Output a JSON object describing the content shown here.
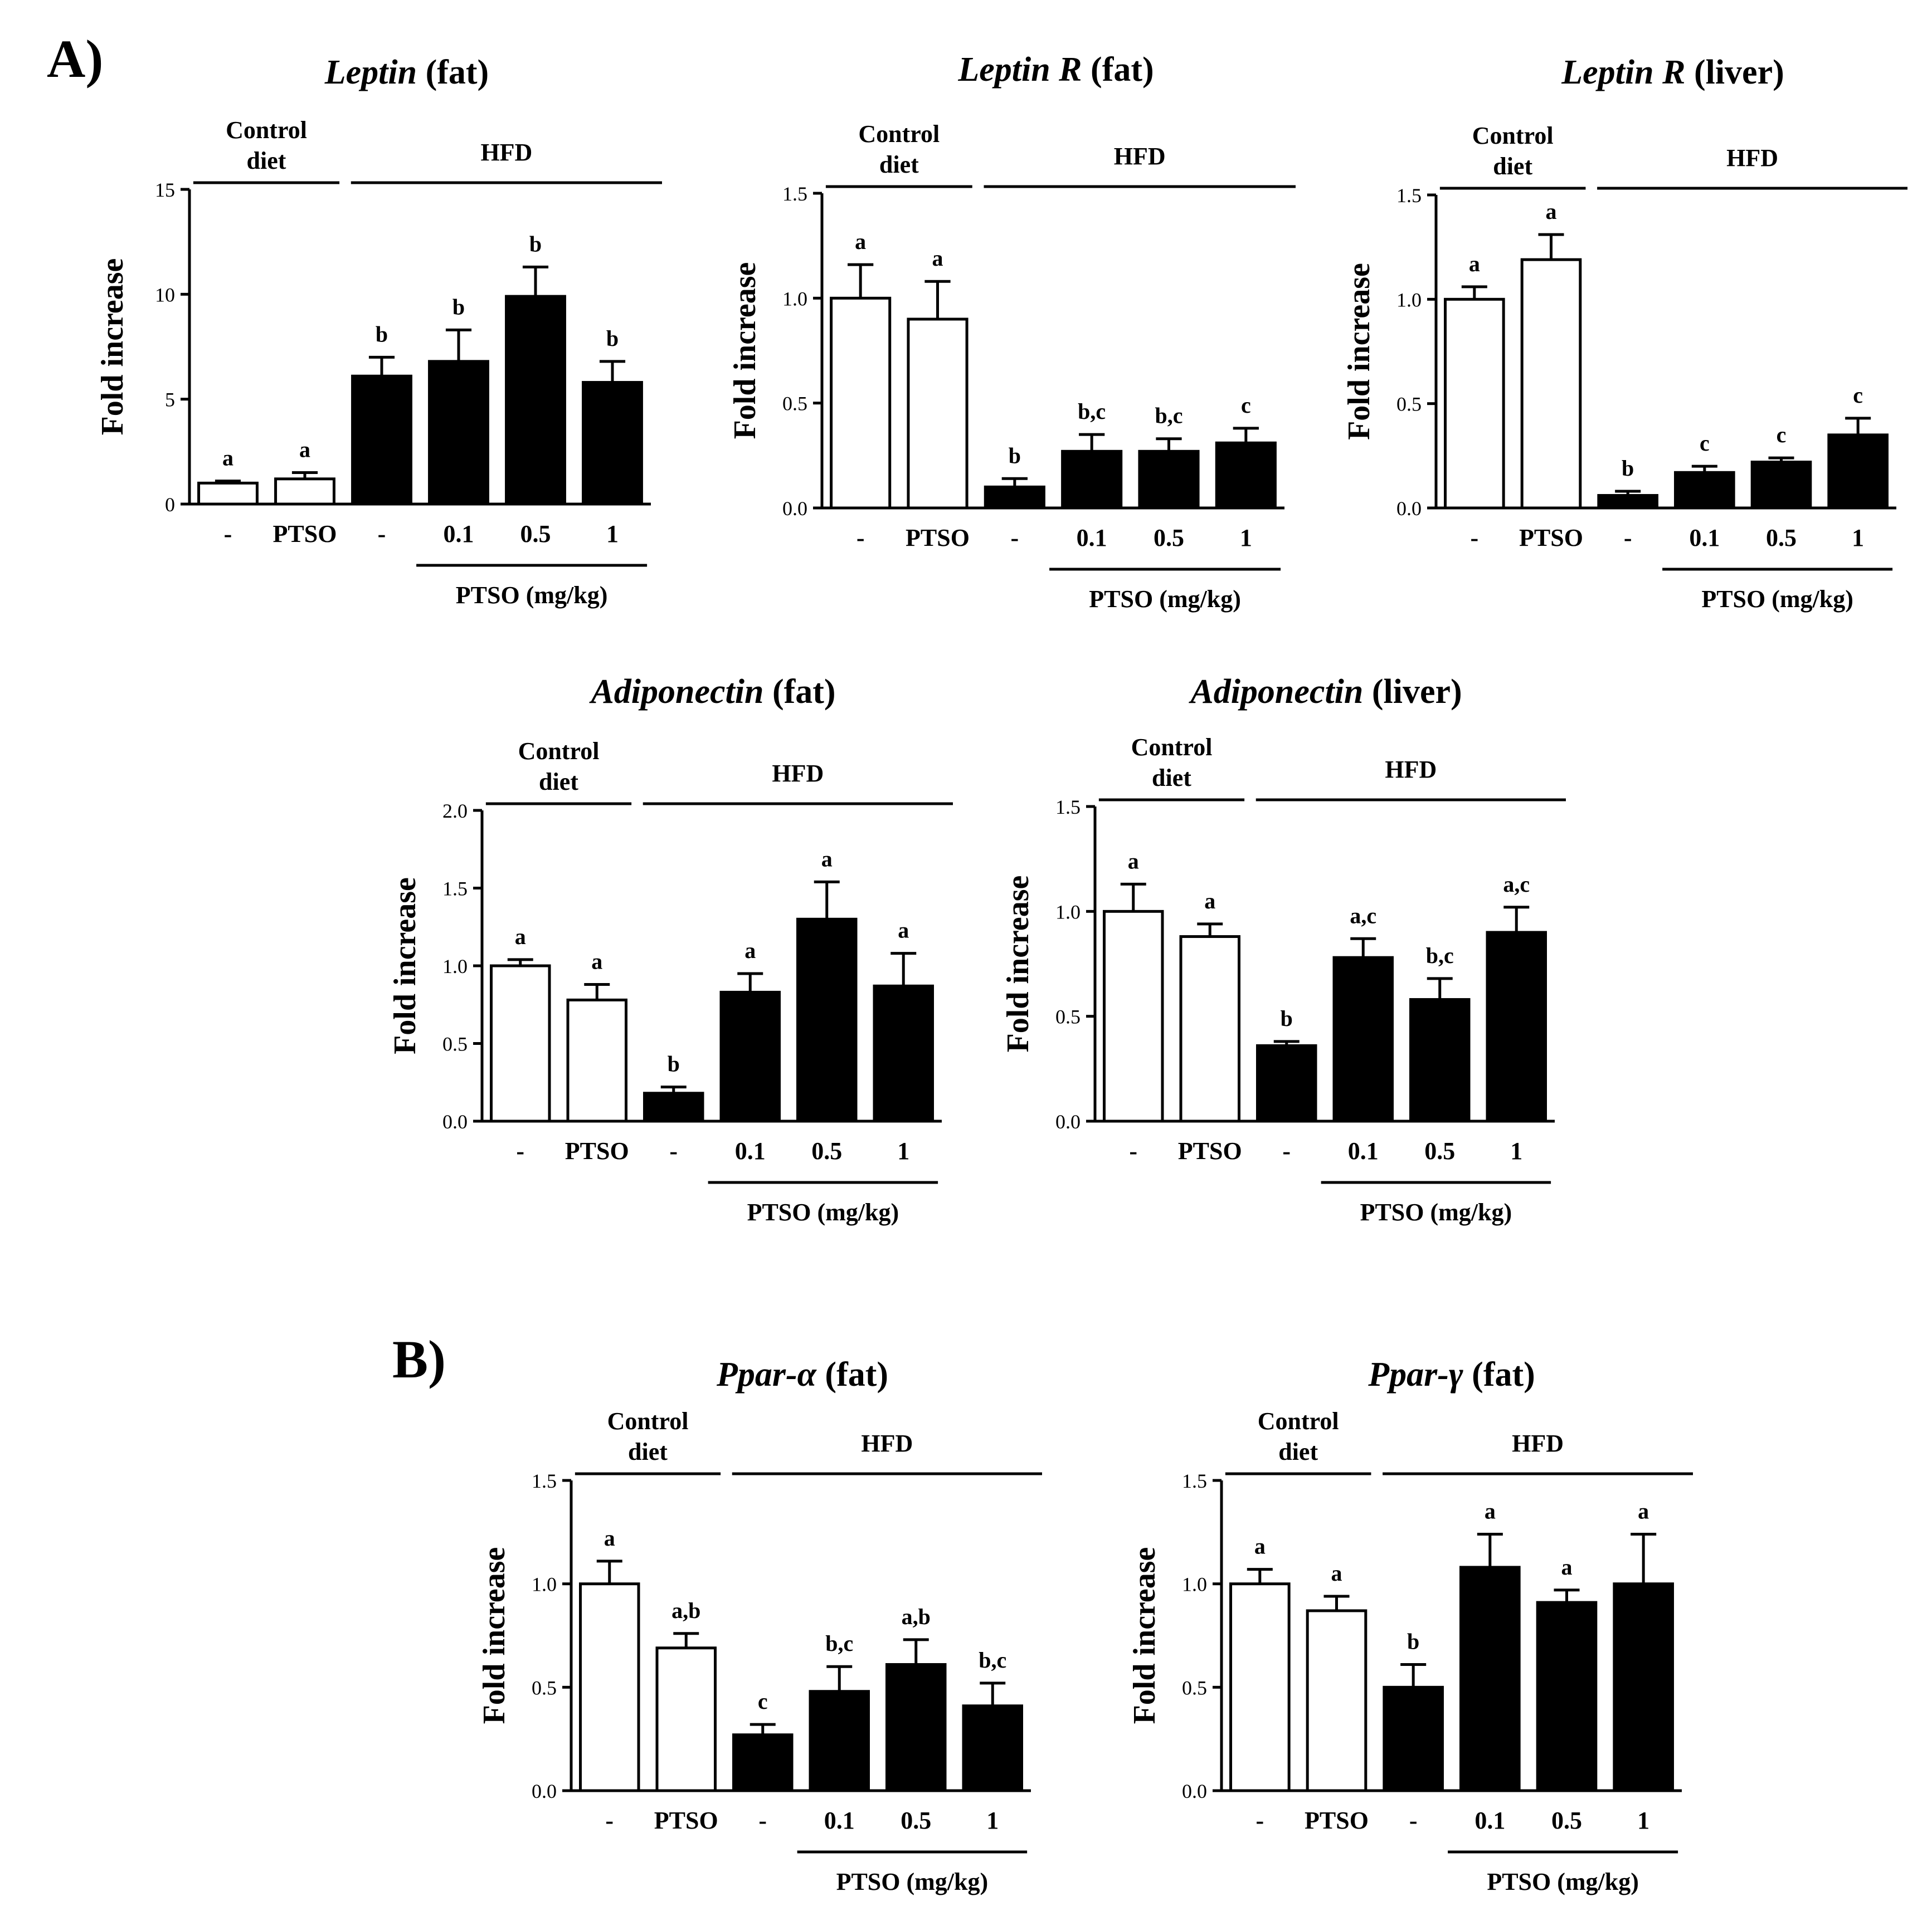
{
  "panels": {
    "A": "A)",
    "B": "B)"
  },
  "group_labels": {
    "control_line1": "Control",
    "control_line2": "diet",
    "hfd": "HFD"
  },
  "colors": {
    "control_bar": "#ffffff",
    "hfd_bar": "#000000",
    "stroke": "#000000"
  },
  "chart_data": [
    {
      "id": "leptin-fat",
      "type": "bar",
      "title_gene": "Leptin",
      "title_tissue": " (fat)",
      "ylabel": "Fold increase",
      "xlabel": "PTSO (mg/kg)",
      "categories": [
        "-",
        "PTSO",
        "-",
        "0.1",
        "0.5",
        "1"
      ],
      "groups": [
        "control",
        "control",
        "hfd",
        "hfd",
        "hfd",
        "hfd"
      ],
      "values": [
        1.0,
        1.2,
        6.1,
        6.8,
        9.9,
        5.8
      ],
      "errors": [
        0.1,
        0.3,
        0.9,
        1.5,
        1.4,
        1.0
      ],
      "letters": [
        "a",
        "a",
        "b",
        "b",
        "b",
        "b"
      ],
      "ylim": [
        0,
        15
      ],
      "ticks": [
        0,
        5,
        10,
        15
      ],
      "tick_labels": [
        "0",
        "5",
        "10",
        "15"
      ]
    },
    {
      "id": "leptinr-fat",
      "type": "bar",
      "title_gene": "Leptin R",
      "title_tissue": " (fat)",
      "ylabel": "Fold increase",
      "xlabel": "PTSO (mg/kg)",
      "categories": [
        "-",
        "PTSO",
        "-",
        "0.1",
        "0.5",
        "1"
      ],
      "groups": [
        "control",
        "control",
        "hfd",
        "hfd",
        "hfd",
        "hfd"
      ],
      "values": [
        1.0,
        0.9,
        0.1,
        0.27,
        0.27,
        0.31
      ],
      "errors": [
        0.16,
        0.18,
        0.04,
        0.08,
        0.06,
        0.07
      ],
      "letters": [
        "a",
        "a",
        "b",
        "b,c",
        "b,c",
        "c"
      ],
      "ylim": [
        0,
        1.5
      ],
      "ticks": [
        0,
        0.5,
        1.0,
        1.5
      ],
      "tick_labels": [
        "0.0",
        "0.5",
        "1.0",
        "1.5"
      ]
    },
    {
      "id": "leptinr-liver",
      "type": "bar",
      "title_gene": "Leptin R",
      "title_tissue": " (liver)",
      "ylabel": "Fold increase",
      "xlabel": "PTSO (mg/kg)",
      "categories": [
        "-",
        "PTSO",
        "-",
        "0.1",
        "0.5",
        "1"
      ],
      "groups": [
        "control",
        "control",
        "hfd",
        "hfd",
        "hfd",
        "hfd"
      ],
      "values": [
        1.0,
        1.19,
        0.06,
        0.17,
        0.22,
        0.35
      ],
      "errors": [
        0.06,
        0.12,
        0.02,
        0.03,
        0.02,
        0.08
      ],
      "letters": [
        "a",
        "a",
        "b",
        "c",
        "c",
        "c"
      ],
      "ylim": [
        0,
        1.5
      ],
      "ticks": [
        0,
        0.5,
        1.0,
        1.5
      ],
      "tick_labels": [
        "0.0",
        "0.5",
        "1.0",
        "1.5"
      ]
    },
    {
      "id": "adiponectin-fat",
      "type": "bar",
      "title_gene": "Adiponectin",
      "title_tissue": " (fat)",
      "ylabel": "Fold increase",
      "xlabel": "PTSO (mg/kg)",
      "categories": [
        "-",
        "PTSO",
        "-",
        "0.1",
        "0.5",
        "1"
      ],
      "groups": [
        "control",
        "control",
        "hfd",
        "hfd",
        "hfd",
        "hfd"
      ],
      "values": [
        1.0,
        0.78,
        0.18,
        0.83,
        1.3,
        0.87
      ],
      "errors": [
        0.04,
        0.1,
        0.04,
        0.12,
        0.24,
        0.21
      ],
      "letters": [
        "a",
        "a",
        "b",
        "a",
        "a",
        "a"
      ],
      "ylim": [
        0,
        2.0
      ],
      "ticks": [
        0,
        0.5,
        1.0,
        1.5,
        2.0
      ],
      "tick_labels": [
        "0.0",
        "0.5",
        "1.0",
        "1.5",
        "2.0"
      ]
    },
    {
      "id": "adiponectin-liver",
      "type": "bar",
      "title_gene": "Adiponectin",
      "title_tissue": " (liver)",
      "ylabel": "Fold increase",
      "xlabel": "PTSO (mg/kg)",
      "categories": [
        "-",
        "PTSO",
        "-",
        "0.1",
        "0.5",
        "1"
      ],
      "groups": [
        "control",
        "control",
        "hfd",
        "hfd",
        "hfd",
        "hfd"
      ],
      "values": [
        1.0,
        0.88,
        0.36,
        0.78,
        0.58,
        0.9
      ],
      "errors": [
        0.13,
        0.06,
        0.02,
        0.09,
        0.1,
        0.12
      ],
      "letters": [
        "a",
        "a",
        "b",
        "a,c",
        "b,c",
        "a,c"
      ],
      "ylim": [
        0,
        1.5
      ],
      "ticks": [
        0,
        0.5,
        1.0,
        1.5
      ],
      "tick_labels": [
        "0.0",
        "0.5",
        "1.0",
        "1.5"
      ]
    },
    {
      "id": "ppara-fat",
      "type": "bar",
      "title_gene": "Ppar-α",
      "title_tissue": " (fat)",
      "ylabel": "Fold increase",
      "xlabel": "PTSO (mg/kg)",
      "categories": [
        "-",
        "PTSO",
        "-",
        "0.1",
        "0.5",
        "1"
      ],
      "groups": [
        "control",
        "control",
        "hfd",
        "hfd",
        "hfd",
        "hfd"
      ],
      "values": [
        1.0,
        0.69,
        0.27,
        0.48,
        0.61,
        0.41
      ],
      "errors": [
        0.11,
        0.07,
        0.05,
        0.12,
        0.12,
        0.11
      ],
      "letters": [
        "a",
        "a,b",
        "c",
        "b,c",
        "a,b",
        "b,c"
      ],
      "ylim": [
        0,
        1.5
      ],
      "ticks": [
        0,
        0.5,
        1.0,
        1.5
      ],
      "tick_labels": [
        "0.0",
        "0.5",
        "1.0",
        "1.5"
      ]
    },
    {
      "id": "pparg-fat",
      "type": "bar",
      "title_gene": "Ppar-γ",
      "title_tissue": " (fat)",
      "ylabel": "Fold increase",
      "xlabel": "PTSO (mg/kg)",
      "categories": [
        "-",
        "PTSO",
        "-",
        "0.1",
        "0.5",
        "1"
      ],
      "groups": [
        "control",
        "control",
        "hfd",
        "hfd",
        "hfd",
        "hfd"
      ],
      "values": [
        1.0,
        0.87,
        0.5,
        1.08,
        0.91,
        1.0
      ],
      "errors": [
        0.07,
        0.07,
        0.11,
        0.16,
        0.06,
        0.24
      ],
      "letters": [
        "a",
        "a",
        "b",
        "a",
        "a",
        "a"
      ],
      "ylim": [
        0,
        1.5
      ],
      "ticks": [
        0,
        0.5,
        1.0,
        1.5
      ],
      "tick_labels": [
        "0.0",
        "0.5",
        "1.0",
        "1.5"
      ]
    }
  ]
}
